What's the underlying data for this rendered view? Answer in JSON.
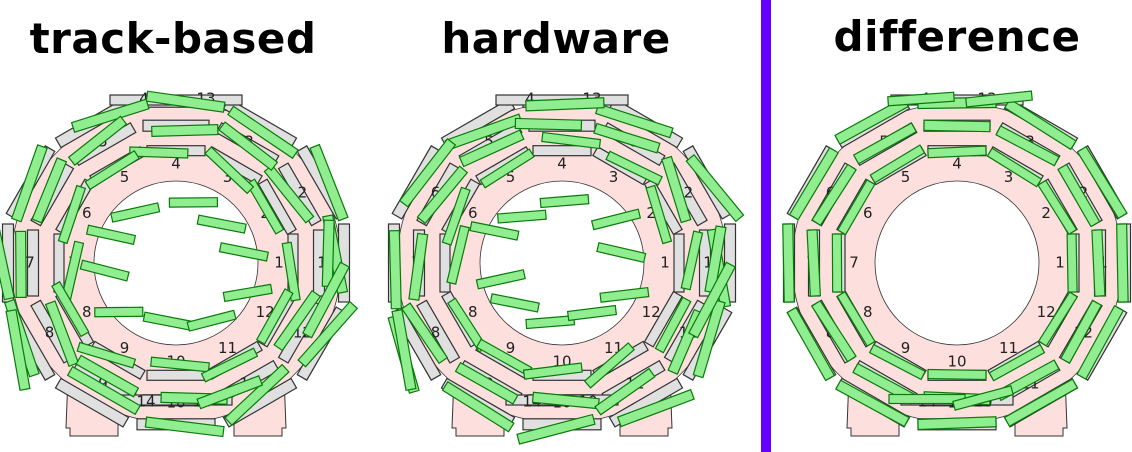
{
  "panels": [
    {
      "title": "track-based",
      "mode": "track"
    },
    {
      "title": "hardware",
      "mode": "hardware"
    },
    {
      "title": "difference",
      "mode": "difference"
    }
  ],
  "divider_color": "#6600ff",
  "colors": {
    "chamber_fill": "#e0e0e0",
    "chamber_stroke": "#333333",
    "iron_fill": "#fde0de",
    "iron_stroke": "#333333",
    "aligned_fill": "#90ee90",
    "aligned_stroke": "#0a7a0a"
  },
  "outer_sector_labels": [
    "1",
    "2",
    "3",
    "4",
    "5",
    "6",
    "7",
    "8",
    "9",
    "10",
    "11",
    "12"
  ],
  "top_labels": [
    "4",
    "13"
  ],
  "bottom_labels": [
    "14",
    "10"
  ],
  "inner_sector_labels": [
    "1",
    "2",
    "3",
    "4",
    "5",
    "6",
    "7",
    "8",
    "9",
    "10",
    "11",
    "12"
  ]
}
